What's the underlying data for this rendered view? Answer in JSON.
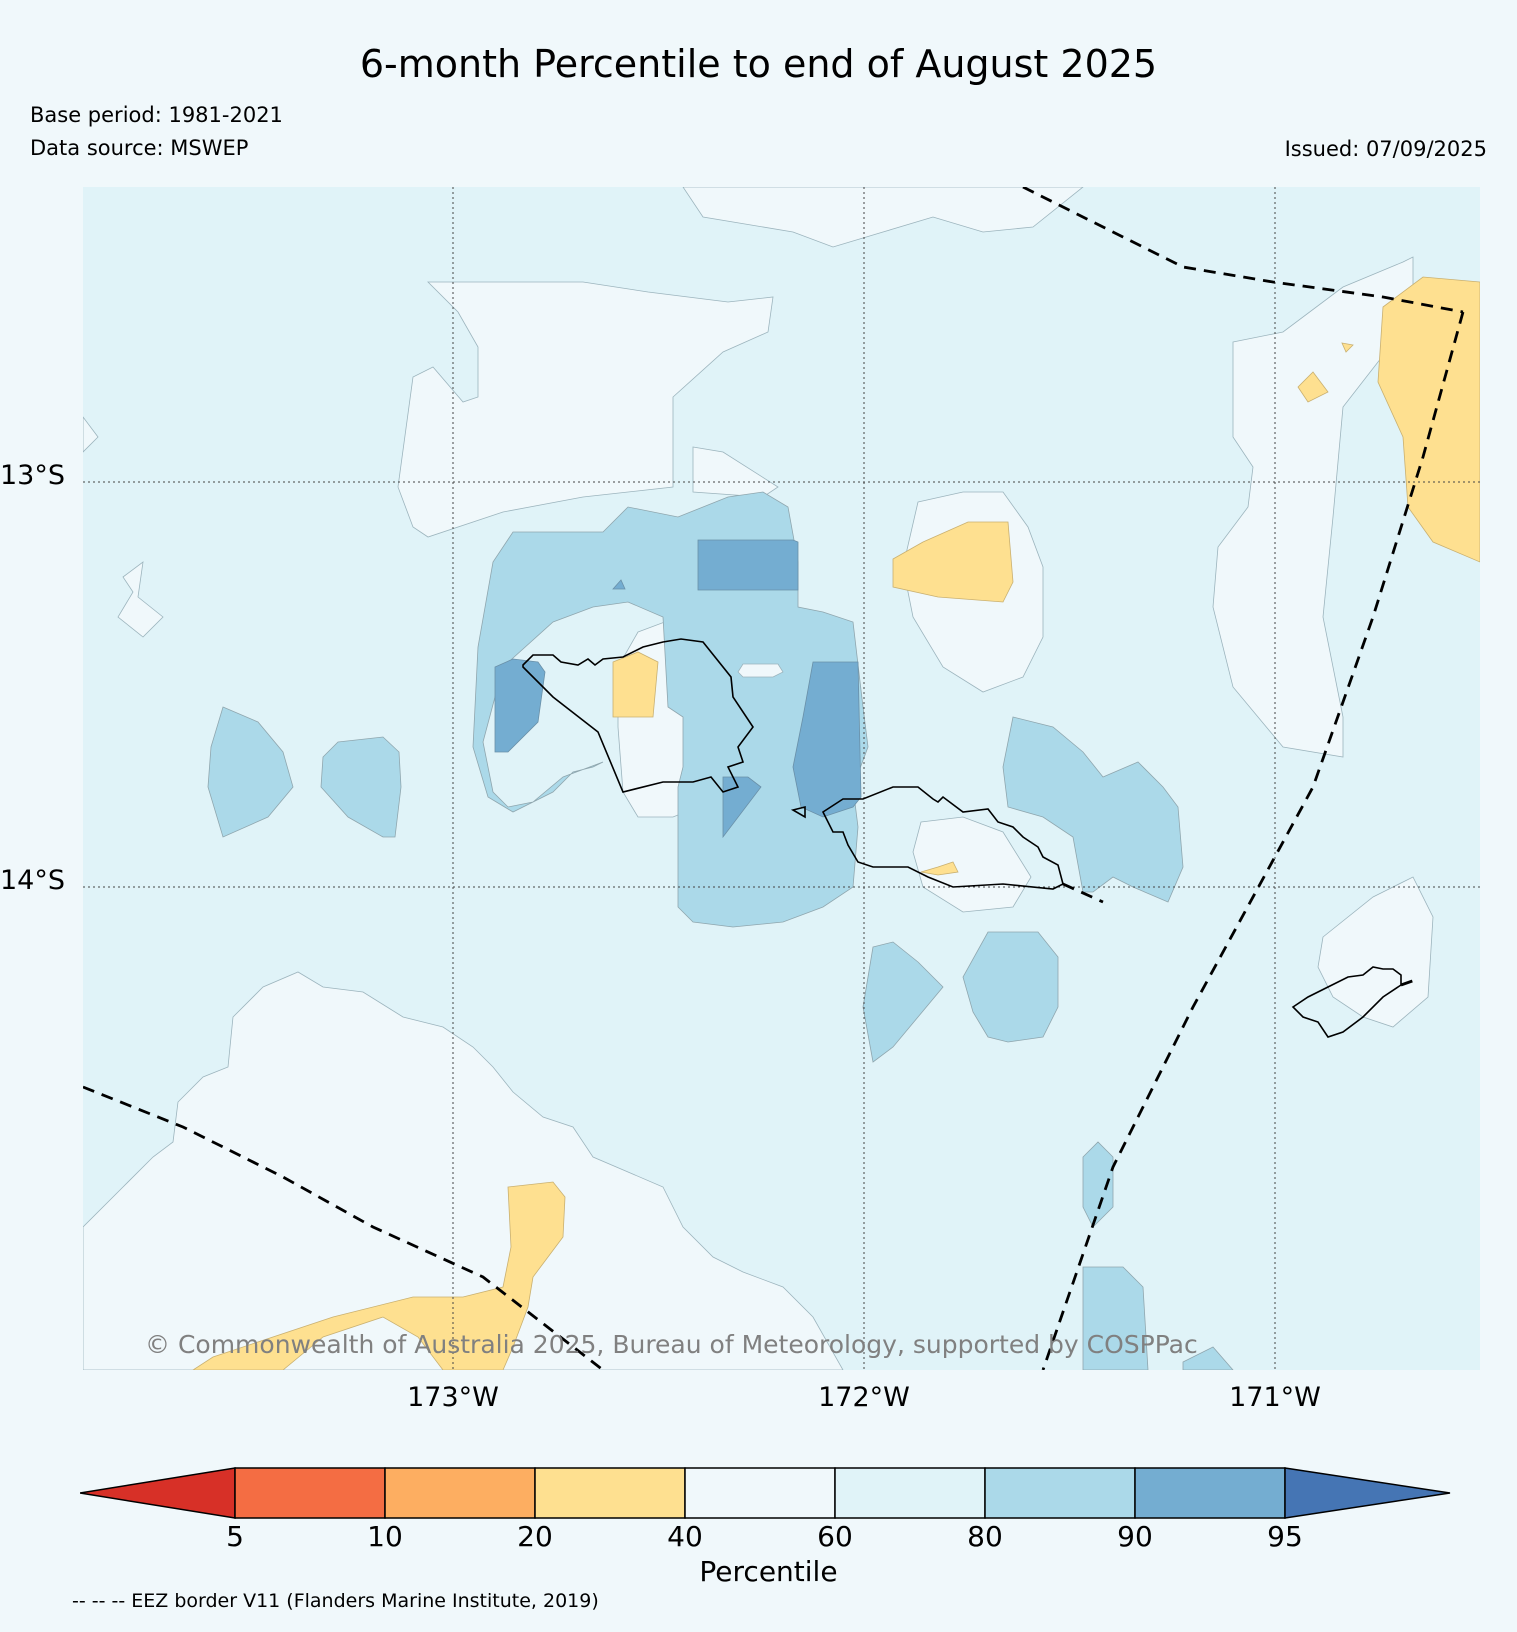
{
  "header": {
    "title": "6-month Percentile to end of August 2025",
    "base_period": "Base period: 1981-2021",
    "data_source": "Data source: MSWEP",
    "issued": "Issued: 07/09/2025"
  },
  "map": {
    "lat_labels": [
      "13°S",
      "14°S"
    ],
    "lon_labels": [
      "173°W",
      "172°W",
      "171°W"
    ],
    "copyright": "© Commonwealth of Australia 2025, Bureau of Meteorology, supported by COSPPac",
    "background_class_color": "#e0f3f8"
  },
  "colorbar": {
    "label": "Percentile",
    "ticks": [
      "5",
      "10",
      "20",
      "40",
      "60",
      "80",
      "90",
      "95"
    ],
    "colors": [
      "#d73027",
      "#f46d43",
      "#fdae61",
      "#fee090",
      "#f0f8fb",
      "#e0f3f8",
      "#abd9e9",
      "#74add1",
      "#4575b4"
    ]
  },
  "legend": {
    "eez_note": "-- -- -- EEZ border V11 (Flanders Marine Institute, 2019)"
  }
}
